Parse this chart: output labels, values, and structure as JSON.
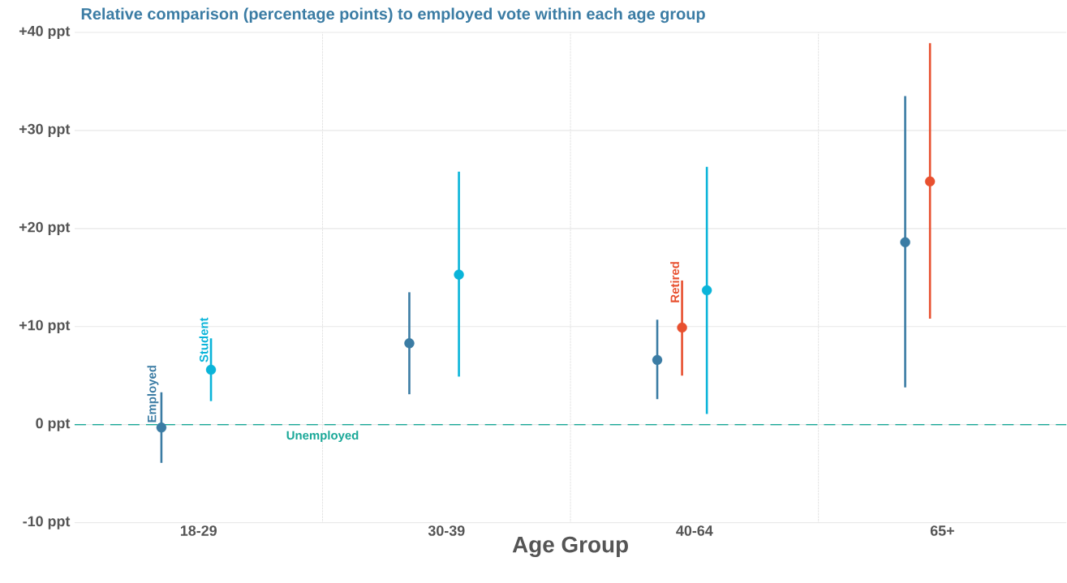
{
  "chart_data": {
    "type": "scatter",
    "title": "Relative comparison (percentage points) to employed vote within each age group",
    "xlabel": "Age Group",
    "categories": [
      "18-29",
      "30-39",
      "40-64",
      "65+"
    ],
    "series": [
      {
        "name": "Employed",
        "color": "#3b7ca4",
        "values": [
          -0.3,
          8.3,
          6.6,
          18.6
        ],
        "errors": [
          [
            -3.9,
            3.3
          ],
          [
            3.1,
            13.5
          ],
          [
            2.6,
            10.7
          ],
          [
            3.8,
            33.5
          ]
        ]
      },
      {
        "name": "Retired",
        "color": "#e8502f",
        "values": [
          null,
          null,
          9.9,
          24.8
        ],
        "errors": [
          null,
          null,
          [
            5.0,
            14.7
          ],
          [
            10.8,
            38.9
          ]
        ]
      },
      {
        "name": "Student",
        "color": "#0ab4d9",
        "values": [
          5.6,
          15.3,
          13.7,
          null
        ],
        "errors": [
          [
            2.4,
            8.8
          ],
          [
            4.9,
            25.8
          ],
          [
            1.1,
            26.3
          ],
          null
        ]
      }
    ],
    "ylim": [
      -10,
      40
    ],
    "yticks": [
      {
        "value": -10,
        "label": "-10 ppt"
      },
      {
        "value": 0,
        "label": "0 ppt"
      },
      {
        "value": 10,
        "label": "+10 ppt"
      },
      {
        "value": 20,
        "label": "+20 ppt"
      },
      {
        "value": 30,
        "label": "+30 ppt"
      },
      {
        "value": 40,
        "label": "+40 ppt"
      }
    ],
    "ref_lines": [
      {
        "axis": "y",
        "value": 0,
        "label": "Unemployed",
        "color": "#1aa898",
        "line_style": "dashed"
      }
    ],
    "grid": "y",
    "marker": "circle"
  }
}
